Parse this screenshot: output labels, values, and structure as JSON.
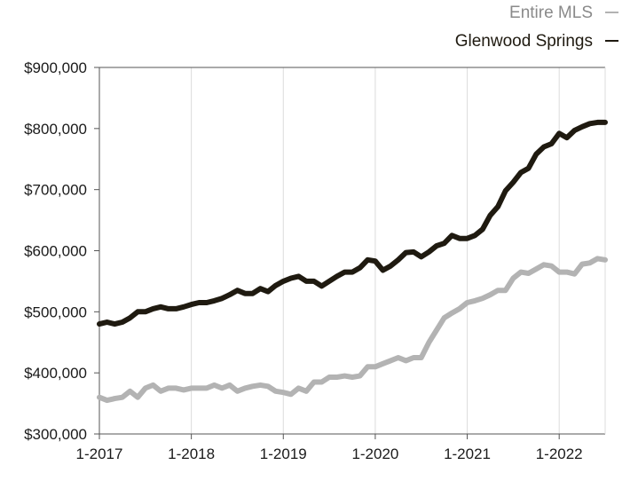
{
  "chart_data": {
    "type": "line",
    "title": "",
    "xlabel": "",
    "ylabel": "",
    "x_ticks": [
      "1-2017",
      "1-2018",
      "1-2019",
      "1-2020",
      "1-2021",
      "1-2022"
    ],
    "y_ticks": [
      "$300,000",
      "$400,000",
      "$500,000",
      "$600,000",
      "$700,000",
      "$800,000",
      "$900,000"
    ],
    "ylim": [
      300000,
      900000
    ],
    "xlim": [
      "2017-01",
      "2022-07"
    ],
    "grid": "vertical",
    "legend_position": "top-right",
    "x": [
      "2017-01",
      "2017-02",
      "2017-03",
      "2017-04",
      "2017-05",
      "2017-06",
      "2017-07",
      "2017-08",
      "2017-09",
      "2017-10",
      "2017-11",
      "2017-12",
      "2018-01",
      "2018-02",
      "2018-03",
      "2018-04",
      "2018-05",
      "2018-06",
      "2018-07",
      "2018-08",
      "2018-09",
      "2018-10",
      "2018-11",
      "2018-12",
      "2019-01",
      "2019-02",
      "2019-03",
      "2019-04",
      "2019-05",
      "2019-06",
      "2019-07",
      "2019-08",
      "2019-09",
      "2019-10",
      "2019-11",
      "2019-12",
      "2020-01",
      "2020-02",
      "2020-03",
      "2020-04",
      "2020-05",
      "2020-06",
      "2020-07",
      "2020-08",
      "2020-09",
      "2020-10",
      "2020-11",
      "2020-12",
      "2021-01",
      "2021-02",
      "2021-03",
      "2021-04",
      "2021-05",
      "2021-06",
      "2021-07",
      "2021-08",
      "2021-09",
      "2021-10",
      "2021-11",
      "2021-12",
      "2022-01",
      "2022-02",
      "2022-03",
      "2022-04",
      "2022-05",
      "2022-06",
      "2022-07"
    ],
    "series": [
      {
        "name": "Entire MLS",
        "color": "#b3b3b3",
        "values": [
          360000,
          355000,
          358000,
          360000,
          370000,
          360000,
          375000,
          380000,
          370000,
          375000,
          375000,
          372000,
          375000,
          375000,
          375000,
          380000,
          375000,
          380000,
          370000,
          375000,
          378000,
          380000,
          378000,
          370000,
          368000,
          365000,
          375000,
          370000,
          385000,
          385000,
          393000,
          393000,
          395000,
          393000,
          395000,
          410000,
          410000,
          415000,
          420000,
          425000,
          420000,
          425000,
          425000,
          450000,
          470000,
          490000,
          498000,
          505000,
          515000,
          518000,
          522000,
          528000,
          535000,
          535000,
          555000,
          565000,
          563000,
          570000,
          577000,
          575000,
          565000,
          565000,
          562000,
          578000,
          580000,
          587000,
          585000
        ]
      },
      {
        "name": "Glenwood Springs",
        "color": "#1f1a10",
        "values": [
          480000,
          483000,
          480000,
          483000,
          490000,
          500000,
          500000,
          505000,
          508000,
          505000,
          505000,
          508000,
          512000,
          515000,
          515000,
          518000,
          522000,
          528000,
          535000,
          530000,
          530000,
          538000,
          533000,
          543000,
          550000,
          555000,
          558000,
          550000,
          550000,
          542000,
          550000,
          558000,
          565000,
          565000,
          572000,
          585000,
          583000,
          568000,
          575000,
          585000,
          597000,
          598000,
          590000,
          598000,
          608000,
          612000,
          625000,
          620000,
          620000,
          625000,
          635000,
          658000,
          672000,
          698000,
          712000,
          728000,
          735000,
          758000,
          770000,
          775000,
          792000,
          785000,
          797000,
          803000,
          808000,
          810000,
          810000
        ]
      }
    ]
  }
}
